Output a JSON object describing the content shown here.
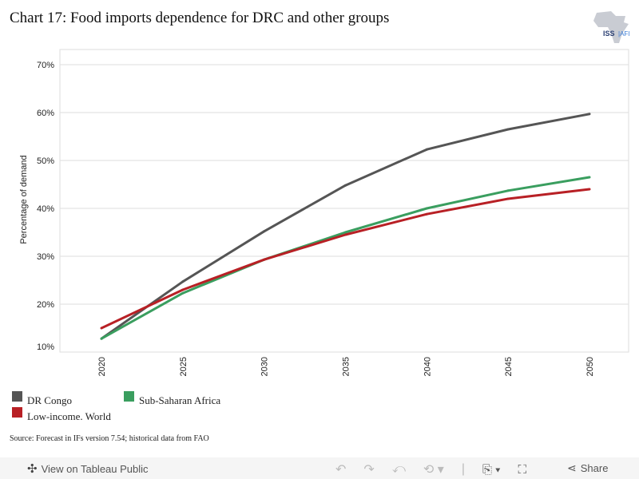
{
  "title": "Chart 17: Food imports dependence for DRC and other groups",
  "logo_text": "ISS|AFI",
  "source": "Source: Forecast in IFs version 7.54; historical data from FAO",
  "toolbar": {
    "view_label": "View on Tableau Public",
    "share_label": "Share"
  },
  "chart_data": {
    "type": "line",
    "title": "",
    "xlabel": "",
    "ylabel": "Percentage of demand",
    "x": [
      2020,
      2025,
      2030,
      2035,
      2040,
      2045,
      2050
    ],
    "x_tick_labels": [
      "2020",
      "2025",
      "2030",
      "2035",
      "2040",
      "2045",
      "2050"
    ],
    "ylim": [
      10,
      72
    ],
    "y_ticks": [
      10,
      20,
      30,
      40,
      50,
      60,
      70
    ],
    "y_tick_labels": [
      "10%",
      "20%",
      "30%",
      "40%",
      "50%",
      "60%",
      "70%"
    ],
    "grid": true,
    "legend_placement": "bottom-left",
    "series": [
      {
        "name": "DR Congo",
        "color": "#555555",
        "values": [
          12.8,
          24.7,
          35.2,
          44.8,
          52.3,
          56.5,
          59.7
        ]
      },
      {
        "name": "Sub-Saharan Africa",
        "color": "#3a9e5f",
        "values": [
          12.8,
          22.3,
          29.3,
          35.0,
          40.0,
          43.7,
          46.5
        ]
      },
      {
        "name": "Low-income. World",
        "color": "#b82025",
        "values": [
          15.0,
          23.0,
          29.3,
          34.5,
          38.8,
          42.0,
          44.0
        ]
      }
    ]
  }
}
